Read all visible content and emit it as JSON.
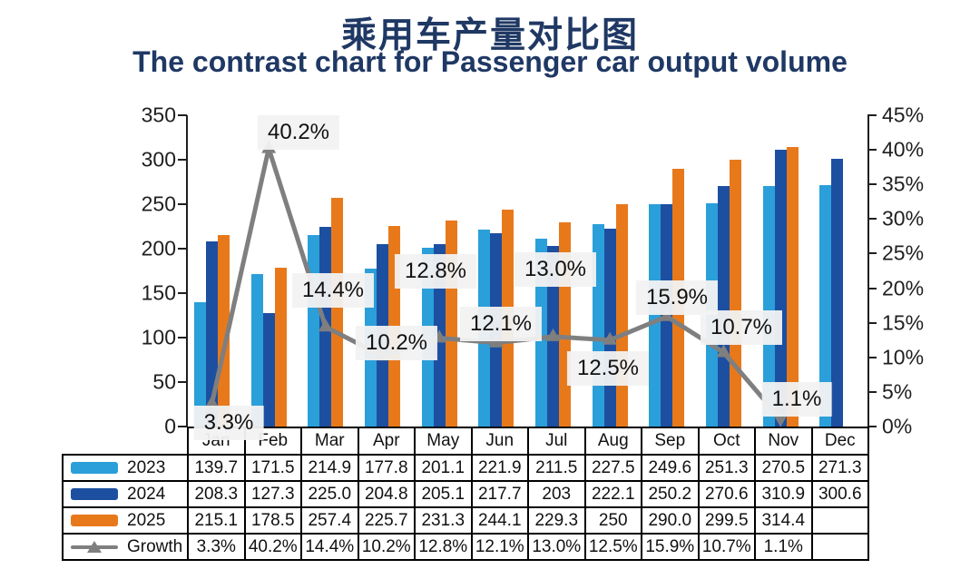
{
  "title": {
    "zh": "乘用车产量对比图",
    "en": "The contrast chart for Passenger car output volume"
  },
  "chart_data": {
    "type": "bar",
    "subtype": "grouped bars with growth line overlay",
    "categories": [
      "Jan",
      "Feb",
      "Mar",
      "Apr",
      "May",
      "Jun",
      "Jul",
      "Aug",
      "Sep",
      "Oct",
      "Nov",
      "Dec"
    ],
    "series": [
      {
        "name": "2023",
        "type": "bar",
        "color": "#2B9FD9",
        "values": [
          139.7,
          171.5,
          214.9,
          177.8,
          201.1,
          221.9,
          211.5,
          227.5,
          249.6,
          251.3,
          270.5,
          271.3
        ]
      },
      {
        "name": "2024",
        "type": "bar",
        "color": "#1D4FA1",
        "values": [
          208.3,
          127.3,
          225.0,
          204.8,
          205.1,
          217.7,
          203,
          222.1,
          250.2,
          270.6,
          310.9,
          300.6
        ]
      },
      {
        "name": "2025",
        "type": "bar",
        "color": "#E8791B",
        "values": [
          215.1,
          178.5,
          257.4,
          225.7,
          231.3,
          244.1,
          229.3,
          250,
          290.0,
          299.5,
          314.4,
          null
        ]
      },
      {
        "name": "Growth",
        "type": "line",
        "color": "#7F7F7F",
        "values": [
          3.3,
          40.2,
          14.4,
          10.2,
          12.8,
          12.1,
          13.0,
          12.5,
          15.9,
          10.7,
          1.1,
          null
        ]
      }
    ],
    "left_axis": {
      "min": 0,
      "max": 350,
      "step": 50,
      "ticks": [
        "350",
        "300",
        "250",
        "200",
        "150",
        "100",
        "50",
        "0"
      ]
    },
    "right_axis": {
      "min": 0,
      "max": 45,
      "step": 5,
      "ticks": [
        "45%",
        "40%",
        "35%",
        "30%",
        "25%",
        "20%",
        "15%",
        "10%",
        "5%",
        "0%"
      ]
    },
    "data_labels": [
      "3.3%",
      "40.2%",
      "14.4%",
      "10.2%",
      "12.8%",
      "12.1%",
      "13.0%",
      "12.5%",
      "15.9%",
      "10.7%",
      "1.1%"
    ],
    "grid": "off",
    "legend_position": "table-left"
  },
  "table": {
    "columns": [
      "Jan",
      "Feb",
      "Mar",
      "Apr",
      "May",
      "Jun",
      "Jul",
      "Aug",
      "Sep",
      "Oct",
      "Nov",
      "Dec"
    ],
    "rows": [
      {
        "label": "2023",
        "swatch": "bar",
        "color": "#2B9FD9",
        "cells": [
          "139.7",
          "171.5",
          "214.9",
          "177.8",
          "201.1",
          "221.9",
          "211.5",
          "227.5",
          "249.6",
          "251.3",
          "270.5",
          "271.3"
        ]
      },
      {
        "label": "2024",
        "swatch": "bar",
        "color": "#1D4FA1",
        "cells": [
          "208.3",
          "127.3",
          "225.0",
          "204.8",
          "205.1",
          "217.7",
          "203",
          "222.1",
          "250.2",
          "270.6",
          "310.9",
          "300.6"
        ]
      },
      {
        "label": "2025",
        "swatch": "bar",
        "color": "#E8791B",
        "cells": [
          "215.1",
          "178.5",
          "257.4",
          "225.7",
          "231.3",
          "244.1",
          "229.3",
          "250",
          "290.0",
          "299.5",
          "314.4",
          ""
        ]
      },
      {
        "label": "Growth",
        "swatch": "line",
        "color": "#7F7F7F",
        "cells": [
          "3.3%",
          "40.2%",
          "14.4%",
          "10.2%",
          "12.8%",
          "12.1%",
          "13.0%",
          "12.5%",
          "15.9%",
          "10.7%",
          "1.1%",
          ""
        ]
      }
    ]
  },
  "colors": {
    "title": "#1F3864",
    "bar_2023": "#2B9FD9",
    "bar_2024": "#1D4FA1",
    "bar_2025": "#E8791B",
    "growth_line": "#7F7F7F",
    "label_background": "#F2F2F2",
    "axis": "#1f1f1f"
  }
}
